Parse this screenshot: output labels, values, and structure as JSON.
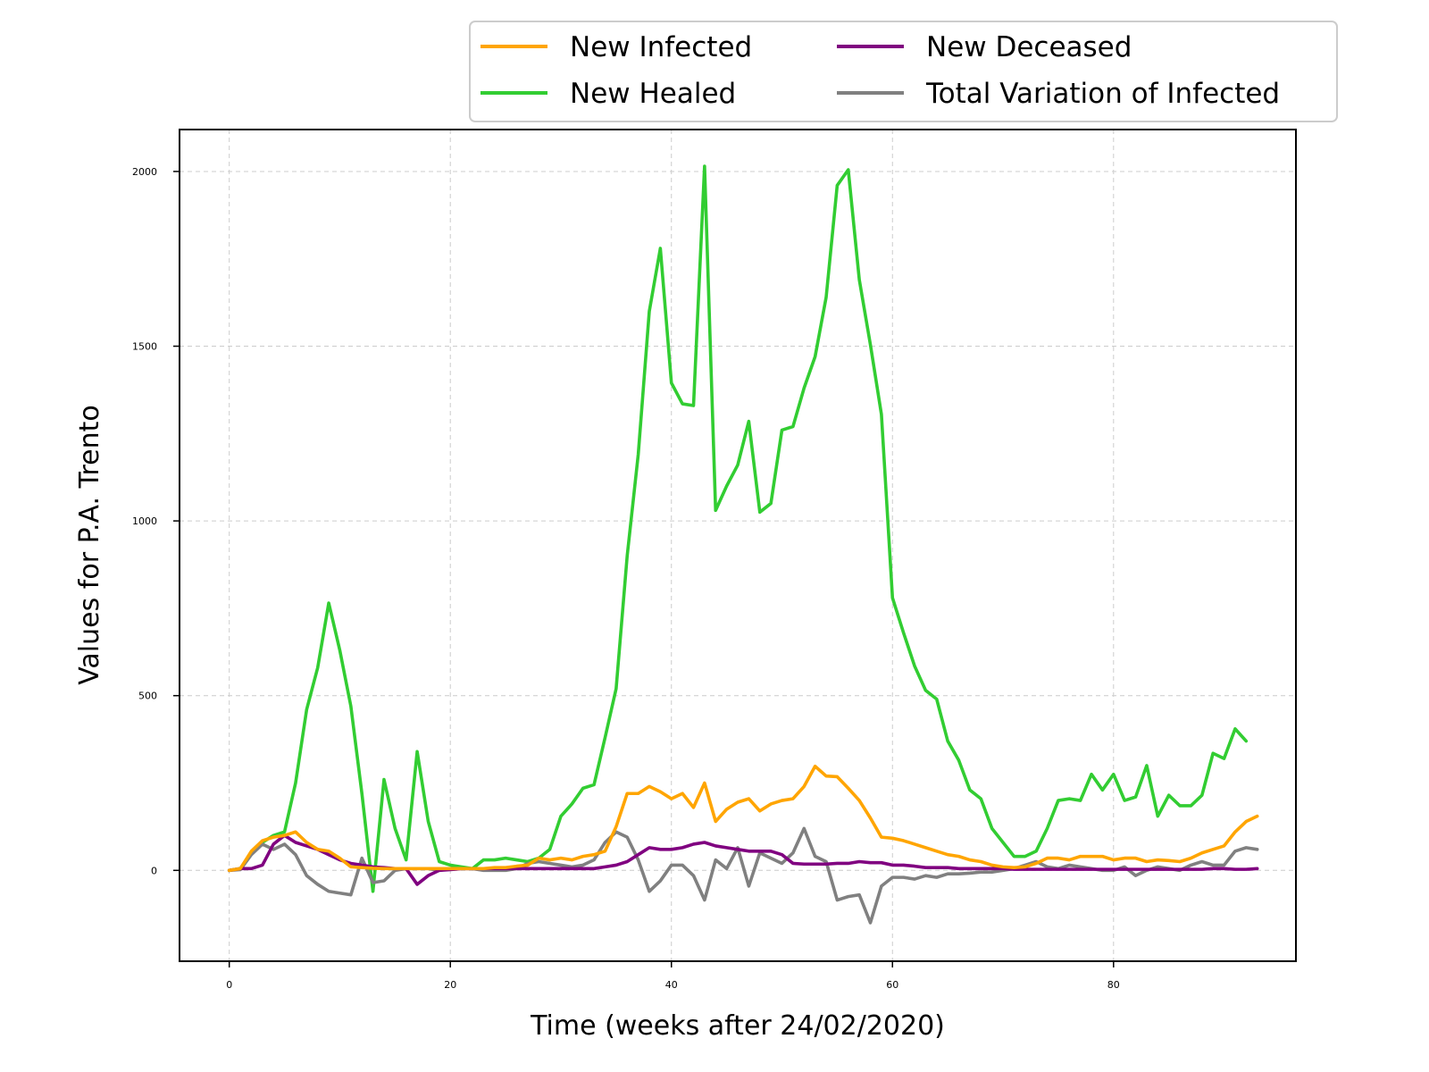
{
  "chart_data": {
    "type": "line",
    "xlabel": "Time (weeks after 24/02/2020)",
    "ylabel": "Values for P.A. Trento",
    "xlim": [
      -4.5,
      96.5
    ],
    "ylim": [
      -260,
      2120
    ],
    "xticks": [
      0,
      20,
      40,
      60,
      80
    ],
    "yticks": [
      0,
      500,
      1000,
      1500,
      2000
    ],
    "grid": true,
    "legend_position": "top-right, above plot, 2 columns",
    "series": [
      {
        "name": "New Infected",
        "color": "#FFA500",
        "values": [
          0,
          5,
          55,
          85,
          95,
          100,
          110,
          80,
          60,
          55,
          35,
          10,
          8,
          6,
          5,
          5,
          5,
          5,
          5,
          5,
          5,
          5,
          5,
          5,
          8,
          8,
          12,
          15,
          35,
          30,
          35,
          30,
          40,
          45,
          55,
          125,
          220,
          220,
          240,
          225,
          205,
          220,
          180,
          250,
          140,
          175,
          195,
          205,
          170,
          190,
          200,
          205,
          240,
          298,
          270,
          268,
          235,
          200,
          150,
          95,
          92,
          85,
          75,
          65,
          55,
          45,
          40,
          30,
          25,
          15,
          10,
          8,
          10,
          20,
          35,
          35,
          30,
          40,
          40,
          40,
          30,
          35,
          35,
          25,
          30,
          28,
          25,
          35,
          50,
          60,
          70,
          110,
          140,
          155
        ]
      },
      {
        "name": "New Healed",
        "color": "#32CD32",
        "values": [
          0,
          5,
          50,
          80,
          100,
          110,
          250,
          460,
          580,
          765,
          630,
          470,
          220,
          -60,
          260,
          120,
          30,
          340,
          140,
          25,
          15,
          10,
          5,
          30,
          30,
          35,
          30,
          25,
          35,
          60,
          155,
          190,
          235,
          245,
          380,
          520,
          900,
          1190,
          1600,
          1780,
          1395,
          1335,
          1330,
          2015,
          1030,
          1100,
          1160,
          1285,
          1025,
          1050,
          1260,
          1270,
          1380,
          1470,
          1640,
          1960,
          2005,
          1690,
          1505,
          1305,
          780,
          680,
          585,
          515,
          490,
          370,
          315,
          230,
          205,
          120,
          80,
          40,
          40,
          55,
          120,
          200,
          205,
          200,
          275,
          230,
          275,
          200,
          210,
          300,
          155,
          215,
          185,
          185,
          215,
          335,
          320,
          405,
          370
        ]
      },
      {
        "name": "New Deceased",
        "color": "#800080",
        "values": [
          0,
          5,
          5,
          15,
          75,
          100,
          80,
          70,
          60,
          45,
          30,
          20,
          15,
          10,
          8,
          5,
          5,
          -40,
          -15,
          0,
          2,
          5,
          5,
          5,
          5,
          5,
          5,
          5,
          5,
          5,
          5,
          5,
          5,
          5,
          10,
          15,
          25,
          45,
          65,
          60,
          60,
          65,
          75,
          80,
          70,
          65,
          60,
          55,
          55,
          55,
          45,
          20,
          18,
          18,
          18,
          20,
          20,
          25,
          22,
          22,
          15,
          15,
          12,
          8,
          8,
          8,
          5,
          5,
          5,
          5,
          5,
          3,
          3,
          3,
          3,
          3,
          3,
          3,
          3,
          3,
          3,
          3,
          3,
          3,
          3,
          3,
          3,
          3,
          3,
          5,
          5,
          3,
          3,
          5
        ]
      },
      {
        "name": "Total Variation of Infected",
        "color": "#808080",
        "values": [
          0,
          2,
          45,
          75,
          60,
          75,
          45,
          -15,
          -40,
          -60,
          -65,
          -70,
          35,
          -35,
          -30,
          0,
          5,
          5,
          5,
          0,
          5,
          5,
          5,
          0,
          0,
          0,
          5,
          20,
          25,
          20,
          15,
          10,
          15,
          30,
          80,
          110,
          95,
          30,
          -60,
          -30,
          15,
          15,
          -15,
          -85,
          30,
          5,
          65,
          -45,
          50,
          35,
          20,
          50,
          120,
          40,
          25,
          -85,
          -75,
          -70,
          -150,
          -45,
          -20,
          -20,
          -25,
          -15,
          -20,
          -10,
          -10,
          -8,
          -5,
          -5,
          0,
          5,
          15,
          25,
          10,
          5,
          15,
          10,
          5,
          0,
          0,
          10,
          -15,
          0,
          10,
          5,
          0,
          15,
          25,
          15,
          15,
          55,
          65,
          60
        ]
      }
    ]
  }
}
